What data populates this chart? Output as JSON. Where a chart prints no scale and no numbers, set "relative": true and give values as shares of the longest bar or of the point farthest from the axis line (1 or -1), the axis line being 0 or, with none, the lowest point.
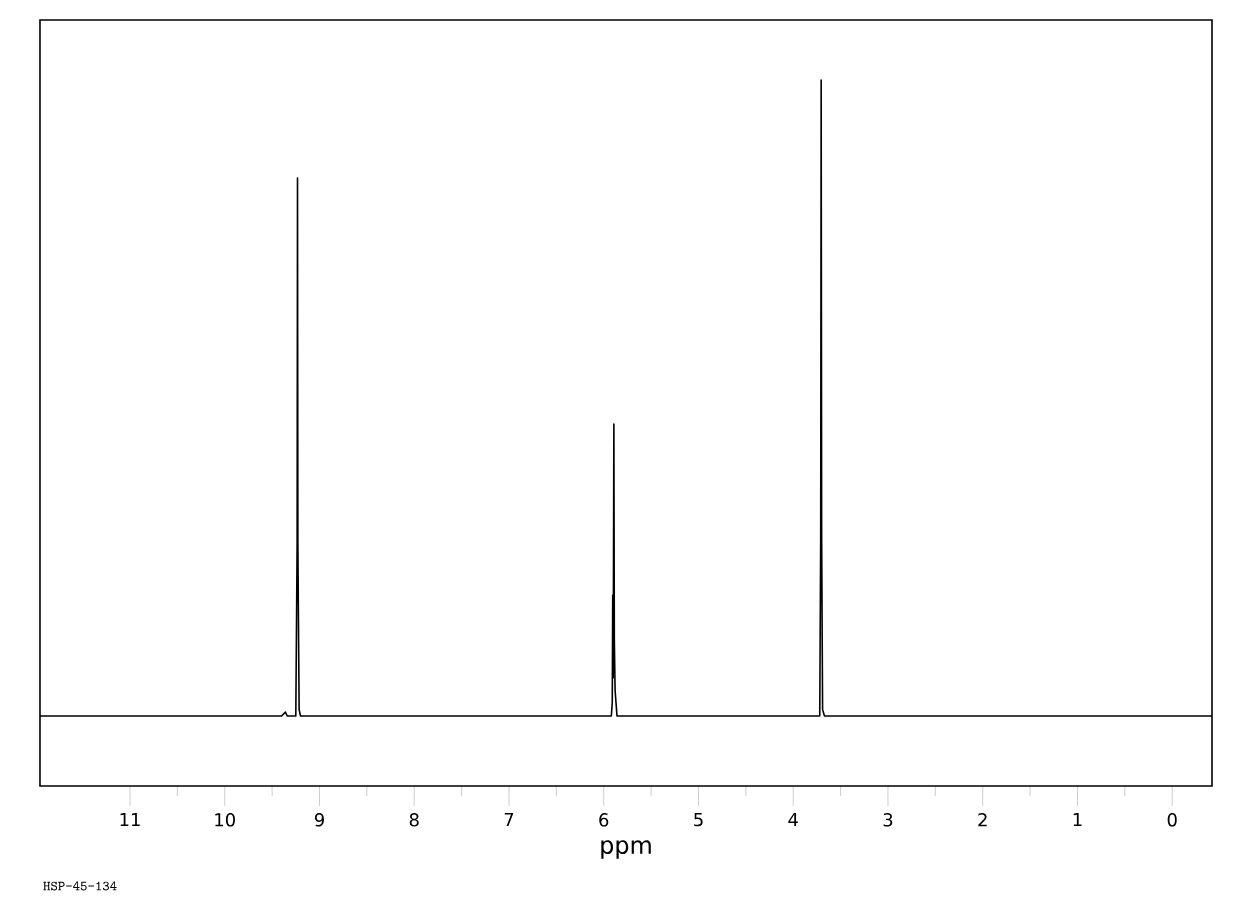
{
  "chart_data": {
    "type": "line",
    "relative": true,
    "xlabel": "ppm",
    "color": "#000000",
    "x": [
      11.95,
      9.4,
      9.36,
      9.34,
      9.25,
      9.236,
      9.232,
      9.228,
      9.215,
      9.2,
      5.92,
      5.91,
      5.905,
      5.9,
      5.893,
      5.888,
      5.88,
      5.86,
      3.72,
      3.71,
      3.705,
      3.7,
      3.69,
      3.67,
      -0.42
    ],
    "values": [
      0,
      0,
      0.006,
      0,
      0,
      0.27,
      0.846,
      0.27,
      0.01,
      0,
      0,
      0.02,
      0.19,
      0.06,
      0.459,
      0.12,
      0.04,
      0,
      0,
      0.28,
      1,
      0.28,
      0.01,
      0,
      0
    ],
    "xlim": [
      11.95,
      -0.42
    ],
    "xticks": [
      11,
      10,
      9,
      8,
      7,
      6,
      5,
      4,
      3,
      2,
      1,
      0
    ],
    "annotations": [
      "HSP-45-134"
    ]
  }
}
